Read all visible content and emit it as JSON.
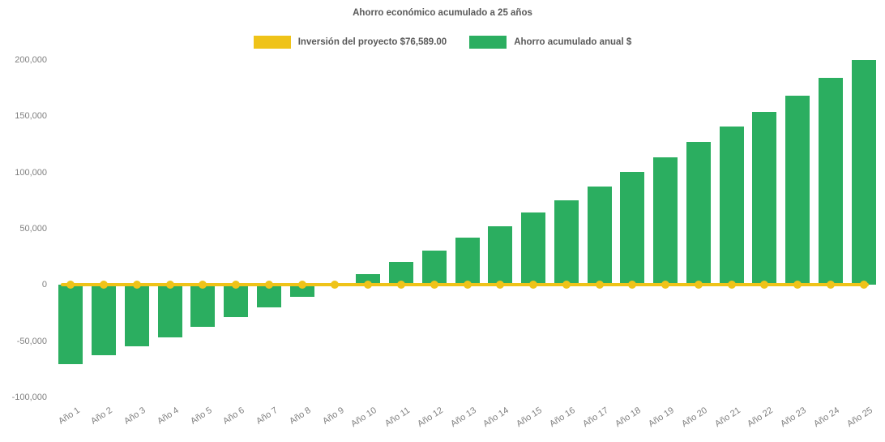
{
  "chart": {
    "title": "Ahorro económico acumulado a 25 años",
    "legend": [
      {
        "label": "Inversión del proyecto $76,589.00",
        "color": "#efc319"
      },
      {
        "label": "Ahorro acumulado anual $",
        "color": "#2bae60"
      }
    ]
  },
  "chart_data": {
    "type": "bar",
    "title": "Ahorro económico acumulado a 25 años",
    "categories": [
      "Año 1",
      "Año 2",
      "Año 3",
      "Año 4",
      "Año 5",
      "Año 6",
      "Año 7",
      "Año 8",
      "Año 9",
      "Año 10",
      "Año 11",
      "Año 12",
      "Año 13",
      "Año 14",
      "Año 15",
      "Año 16",
      "Año 17",
      "Año 18",
      "Año 19",
      "Año 20",
      "Año 21",
      "Año 22",
      "Año 23",
      "Año 24",
      "Año 25"
    ],
    "series": [
      {
        "name": "Ahorro acumulado anual $",
        "type": "bar",
        "color": "#2bae60",
        "values": [
          -70500,
          -62800,
          -54800,
          -46900,
          -37500,
          -28700,
          -19700,
          -10600,
          -1200,
          9900,
          20600,
          30700,
          42000,
          52300,
          64300,
          75500,
          87800,
          100500,
          113400,
          127100,
          140600,
          154200,
          168600,
          183900,
          199700
        ]
      },
      {
        "name": "Inversión del proyecto $76,589.00",
        "type": "line",
        "color": "#efc319",
        "values": [
          0,
          0,
          0,
          0,
          0,
          0,
          0,
          0,
          0,
          0,
          0,
          0,
          0,
          0,
          0,
          0,
          0,
          0,
          0,
          0,
          0,
          0,
          0,
          0,
          0
        ]
      }
    ],
    "investment_amount_label": "$76,589.00",
    "ylim": [
      -100000,
      200000
    ],
    "yticks": [
      {
        "value": 200000,
        "label": "200,000"
      },
      {
        "value": 150000,
        "label": "150,000"
      },
      {
        "value": 100000,
        "label": "100,000"
      },
      {
        "value": 50000,
        "label": "50,000"
      },
      {
        "value": 0,
        "label": "0"
      },
      {
        "value": -50000,
        "label": "-50,000"
      },
      {
        "value": -100000,
        "label": "-100,000"
      }
    ],
    "grid": false,
    "legend_position": "top"
  }
}
